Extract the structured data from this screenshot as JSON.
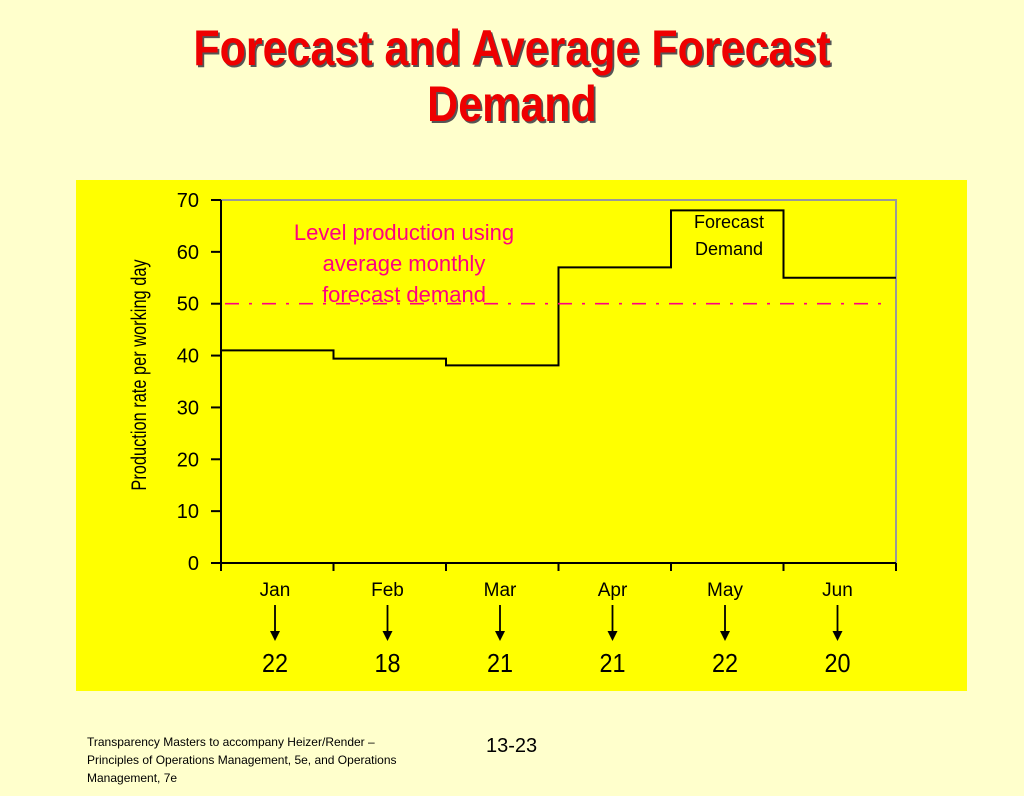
{
  "slide": {
    "title_lines": [
      "Forecast and Average Forecast",
      "Demand"
    ],
    "footer_source": "Transparency Masters to accompany Heizer/Render – Principles of Operations Management, 5e, and Operations Management, 7e",
    "slide_number": "13-23"
  },
  "colors": {
    "background": "#ffffcc",
    "panel": "#ffff00",
    "title": "#ee0000",
    "level_line": "#ff0080",
    "forecast_line": "#000000"
  },
  "chart_data": {
    "type": "line",
    "step": true,
    "title": "",
    "xlabel": "",
    "ylabel": "Production rate per working day",
    "ylim": [
      0,
      70
    ],
    "yticks": [
      0,
      10,
      20,
      30,
      40,
      50,
      60,
      70
    ],
    "categories": [
      "Jan",
      "Feb",
      "Mar",
      "Apr",
      "May",
      "Jun"
    ],
    "working_days": [
      "22",
      "18",
      "21",
      "21",
      "22",
      "20"
    ],
    "series": [
      {
        "name": "Forecast Demand",
        "values": [
          41,
          39.4,
          38.1,
          57,
          68,
          55
        ],
        "style": "solid-step"
      },
      {
        "name": "Level production using average monthly forecast demand",
        "values": [
          50,
          50,
          50,
          50,
          50,
          50
        ],
        "style": "dashed"
      }
    ],
    "annotations": {
      "level_label": [
        "Level production using",
        "average monthly",
        "forecast demand"
      ],
      "forecast_label": [
        "Forecast",
        "Demand"
      ]
    },
    "grid": false
  }
}
